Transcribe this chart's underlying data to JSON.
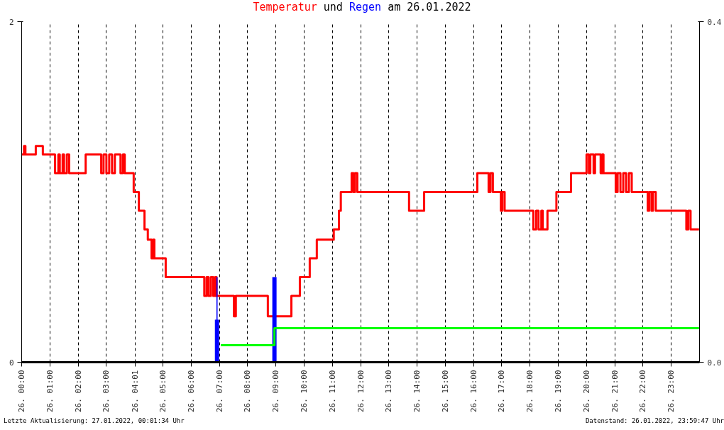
{
  "chart_data": {
    "type": "step",
    "title": "Temperatur und Regen am 26.01.2022",
    "xlim": [
      "2022-01-26T00:00",
      "2022-01-27T00:00"
    ],
    "xticks": [
      {
        "value": "2022-01-26T00:00",
        "label": "26. 00:00"
      },
      {
        "value": "2022-01-26T01:00",
        "label": "26. 01:00"
      },
      {
        "value": "2022-01-26T02:00",
        "label": "26. 02:00"
      },
      {
        "value": "2022-01-26T03:00",
        "label": "26. 03:00"
      },
      {
        "value": "2022-01-26T04:01",
        "label": "26. 04:01"
      },
      {
        "value": "2022-01-26T05:00",
        "label": "26. 05:00"
      },
      {
        "value": "2022-01-26T06:00",
        "label": "26. 06:00"
      },
      {
        "value": "2022-01-26T07:00",
        "label": "26. 07:00"
      },
      {
        "value": "2022-01-26T08:00",
        "label": "26. 08:00"
      },
      {
        "value": "2022-01-26T09:00",
        "label": "26. 09:00"
      },
      {
        "value": "2022-01-26T10:00",
        "label": "26. 10:00"
      },
      {
        "value": "2022-01-26T11:00",
        "label": "26. 11:00"
      },
      {
        "value": "2022-01-26T12:00",
        "label": "26. 12:00"
      },
      {
        "value": "2022-01-26T13:00",
        "label": "26. 13:00"
      },
      {
        "value": "2022-01-26T14:00",
        "label": "26. 14:00"
      },
      {
        "value": "2022-01-26T15:00",
        "label": "26. 15:00"
      },
      {
        "value": "2022-01-26T16:00",
        "label": "26. 16:00"
      },
      {
        "value": "2022-01-26T17:00",
        "label": "26. 17:00"
      },
      {
        "value": "2022-01-26T18:00",
        "label": "26. 18:00"
      },
      {
        "value": "2022-01-26T19:00",
        "label": "26. 19:00"
      },
      {
        "value": "2022-01-26T20:00",
        "label": "26. 20:00"
      },
      {
        "value": "2022-01-26T21:00",
        "label": "26. 21:00"
      },
      {
        "value": "2022-01-26T22:00",
        "label": "26. 22:00"
      },
      {
        "value": "2022-01-26T23:00",
        "label": "26. 23:00"
      }
    ],
    "ylim": [
      0,
      2
    ],
    "yticks": [
      0,
      2
    ],
    "y2lim": [
      0,
      0.4
    ],
    "y2ticks": [
      {
        "value": 0,
        "label": "0.0"
      },
      {
        "value": 0.4,
        "label": "0.4"
      }
    ],
    "grid": true,
    "series": [
      {
        "color": "#ff0000",
        "line_style": "solid",
        "x": [
          "2022-01-26T00:00",
          "2022-01-26T00:05",
          "2022-01-26T00:08",
          "2022-01-26T00:30",
          "2022-01-26T00:45",
          "2022-01-26T01:11",
          "2022-01-26T01:18",
          "2022-01-26T01:21",
          "2022-01-26T01:27",
          "2022-01-26T01:30",
          "2022-01-26T01:36",
          "2022-01-26T01:41",
          "2022-01-26T02:16",
          "2022-01-26T02:49",
          "2022-01-26T02:54",
          "2022-01-26T03:00",
          "2022-01-26T03:06",
          "2022-01-26T03:12",
          "2022-01-26T03:18",
          "2022-01-26T03:30",
          "2022-01-26T03:35",
          "2022-01-26T03:39",
          "2022-01-26T03:58",
          "2022-01-26T04:09",
          "2022-01-26T04:21",
          "2022-01-26T04:28",
          "2022-01-26T04:36",
          "2022-01-26T04:39",
          "2022-01-26T04:42",
          "2022-01-26T05:06",
          "2022-01-26T06:28",
          "2022-01-26T06:33",
          "2022-01-26T06:37",
          "2022-01-26T06:42",
          "2022-01-26T06:47",
          "2022-01-26T06:51",
          "2022-01-26T06:54",
          "2022-01-26T07:31",
          "2022-01-26T07:35",
          "2022-01-26T08:43",
          "2022-01-26T09:33",
          "2022-01-26T09:51",
          "2022-01-26T10:12",
          "2022-01-26T10:27",
          "2022-01-26T11:03",
          "2022-01-26T11:14",
          "2022-01-26T11:18",
          "2022-01-26T11:41",
          "2022-01-26T11:45",
          "2022-01-26T11:48",
          "2022-01-26T11:53",
          "2022-01-26T13:43",
          "2022-01-26T14:15",
          "2022-01-26T16:08",
          "2022-01-26T16:32",
          "2022-01-26T16:36",
          "2022-01-26T16:41",
          "2022-01-26T16:58",
          "2022-01-26T17:01",
          "2022-01-26T17:06",
          "2022-01-26T18:07",
          "2022-01-26T18:13",
          "2022-01-26T18:18",
          "2022-01-26T18:24",
          "2022-01-26T18:27",
          "2022-01-26T18:37",
          "2022-01-26T18:56",
          "2022-01-26T19:27",
          "2022-01-26T20:00",
          "2022-01-26T20:05",
          "2022-01-26T20:08",
          "2022-01-26T20:15",
          "2022-01-26T20:18",
          "2022-01-26T20:30",
          "2022-01-26T20:33",
          "2022-01-26T20:36",
          "2022-01-26T21:02",
          "2022-01-26T21:06",
          "2022-01-26T21:12",
          "2022-01-26T21:18",
          "2022-01-26T21:24",
          "2022-01-26T21:30",
          "2022-01-26T21:36",
          "2022-01-26T22:10",
          "2022-01-26T22:13",
          "2022-01-26T22:18",
          "2022-01-26T22:21",
          "2022-01-26T22:27",
          "2022-01-26T23:32",
          "2022-01-26T23:36",
          "2022-01-26T23:41",
          "2022-01-26T23:59"
        ],
        "values": [
          1.22,
          1.27,
          1.22,
          1.27,
          1.22,
          1.11,
          1.22,
          1.11,
          1.22,
          1.11,
          1.22,
          1.11,
          1.22,
          1.11,
          1.22,
          1.11,
          1.22,
          1.11,
          1.22,
          1.11,
          1.22,
          1.11,
          1.0,
          0.89,
          0.78,
          0.72,
          0.61,
          0.72,
          0.61,
          0.5,
          0.39,
          0.5,
          0.39,
          0.5,
          0.39,
          0.5,
          0.39,
          0.27,
          0.39,
          0.27,
          0.39,
          0.5,
          0.61,
          0.72,
          0.78,
          0.89,
          1.0,
          1.11,
          1.0,
          1.11,
          1.0,
          0.89,
          1.0,
          1.11,
          1.0,
          1.11,
          1.0,
          0.89,
          1.0,
          0.89,
          0.78,
          0.89,
          0.78,
          0.89,
          0.78,
          0.89,
          1.0,
          1.11,
          1.22,
          1.11,
          1.22,
          1.11,
          1.22,
          1.11,
          1.22,
          1.11,
          1.0,
          1.11,
          1.0,
          1.11,
          1.0,
          1.11,
          1.0,
          0.89,
          1.0,
          0.89,
          1.0,
          0.89,
          0.78,
          0.89,
          0.78,
          0.78
        ]
      },
      {
        "type": "bar",
        "axis": "y2",
        "color": "#0000ff",
        "x": [
          "2022-01-26T06:55"
        ],
        "values": [
          0.1
        ]
      },
      {
        "type": "bar",
        "axis": "y2",
        "color": "#0000ff",
        "x": [
          "2022-01-26T06:55",
          "2022-01-26T08:57"
        ],
        "values": [
          0.05,
          0.1
        ]
      },
      {
        "axis": "y2",
        "color": "#00ff00",
        "line_style": "solid",
        "x": [
          "2022-01-26T07:03",
          "2022-01-26T08:57",
          "2022-01-26T23:59"
        ],
        "values": [
          0.02,
          0.04,
          0.04
        ]
      }
    ],
    "annotations": [
      "Letzte Aktualisierung: 27.01.2022, 00:01:34 Uhr",
      "Datenstand: 26.01.2022, 23:59:47 Uhr"
    ]
  }
}
